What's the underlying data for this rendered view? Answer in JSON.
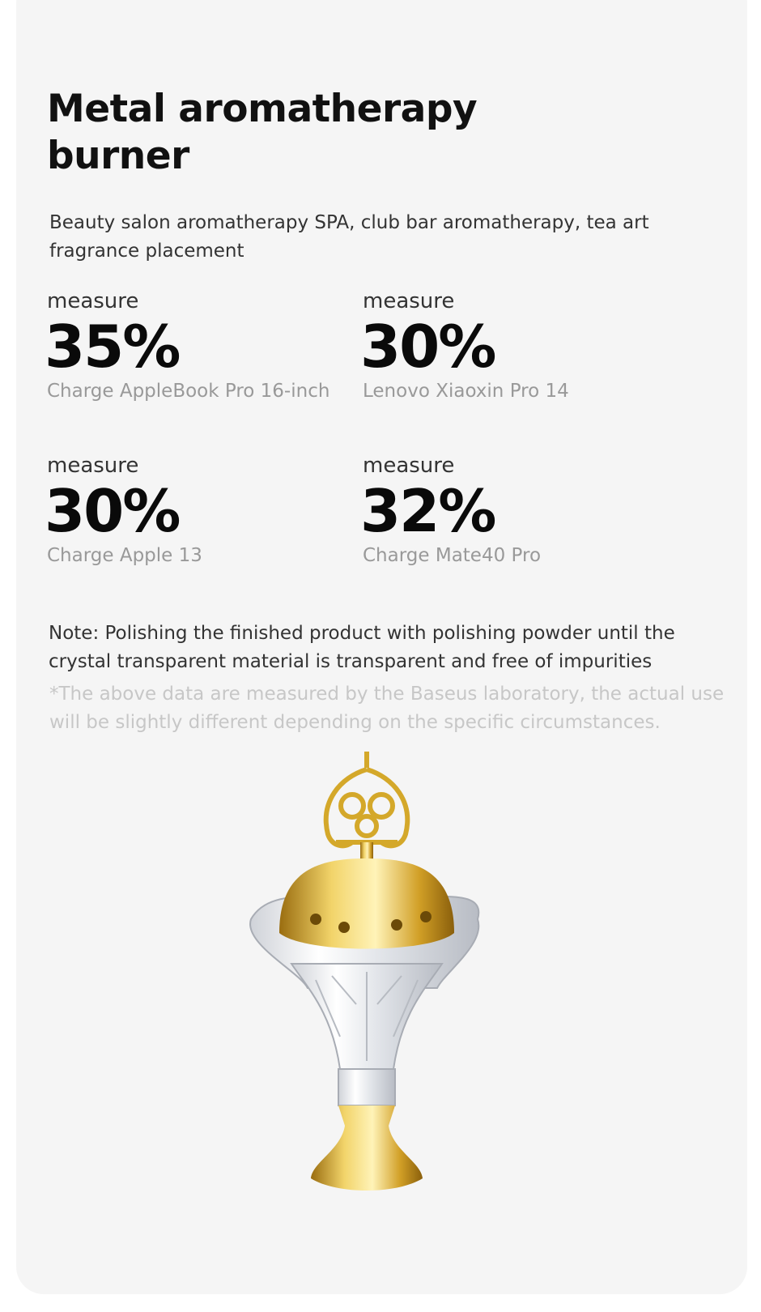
{
  "header": {
    "title": "Metal aromatherapy burner",
    "subtitle": "Beauty salon aromatherapy SPA, club bar aromatherapy, tea art fragrance placement"
  },
  "stats": [
    {
      "label": "measure",
      "value": "35%",
      "device": "Charge AppleBook Pro 16-inch"
    },
    {
      "label": "measure",
      "value": "30%",
      "device": "Lenovo Xiaoxin Pro 14"
    },
    {
      "label": "measure",
      "value": "30%",
      "device": "Charge Apple 13"
    },
    {
      "label": "measure",
      "value": "32%",
      "device": "Charge Mate40 Pro"
    }
  ],
  "note": "Note: Polishing the finished product with polishing powder until the crystal transparent material is transparent and free of impurities",
  "disclaimer": "*The above data are measured by the Baseus laboratory, the actual use will be slightly different depending on the specific circumstances.",
  "product_image": {
    "icon": "aromatherapy-burner-image",
    "colors": {
      "gold": "#d4a82a",
      "crystal": "#e8eaee"
    }
  }
}
